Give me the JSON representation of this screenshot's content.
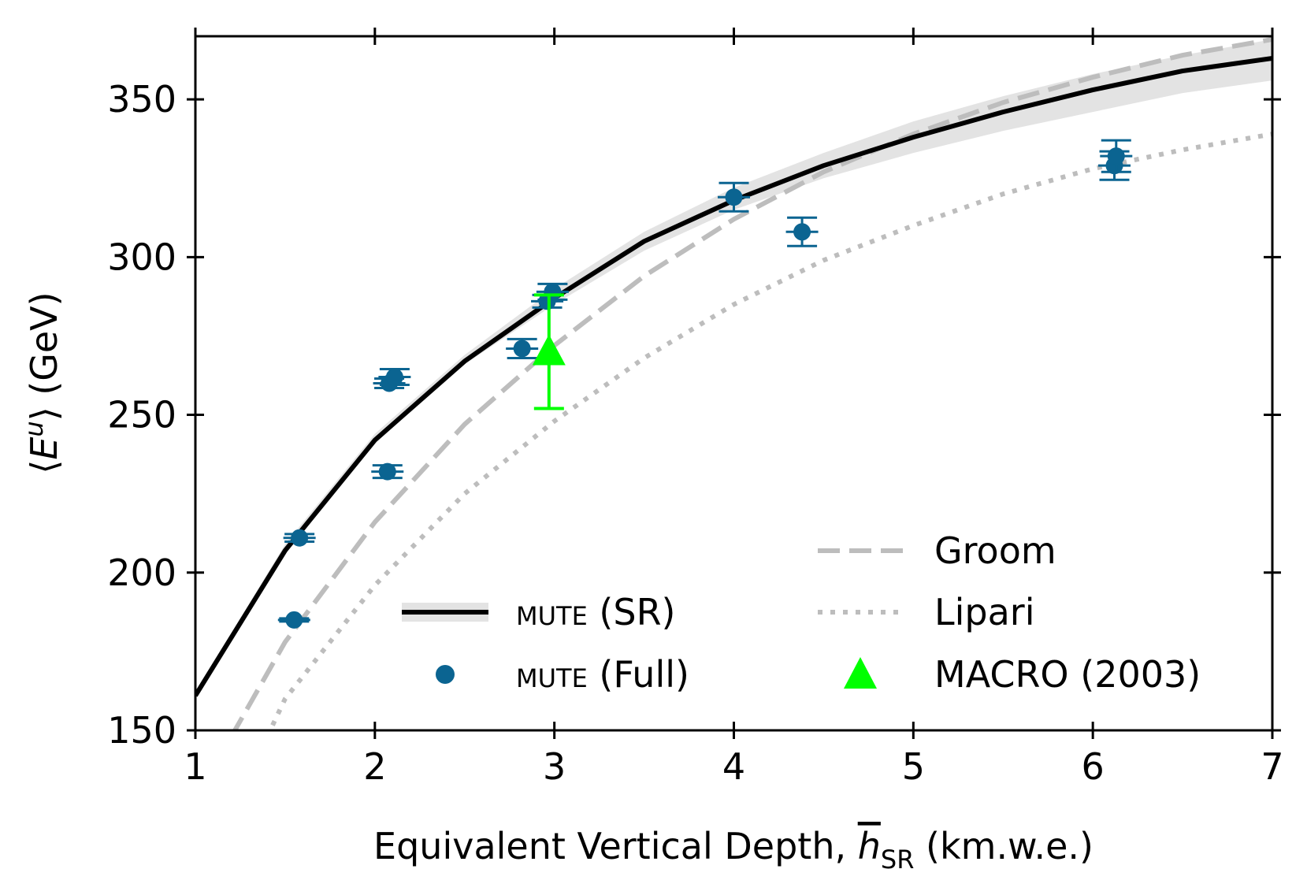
{
  "chart_data": {
    "type": "line",
    "xlabel": "Equivalent Vertical Depth, h̄SR (km.w.e.)",
    "ylabel": "⟨Eᵘ⟩ (GeV)",
    "xlim": [
      1,
      7
    ],
    "ylim": [
      150,
      370
    ],
    "xticks": [
      1,
      2,
      3,
      4,
      5,
      6,
      7
    ],
    "yticks": [
      150,
      200,
      250,
      300,
      350
    ],
    "grid": false,
    "legend_position": "lower-right",
    "colors": {
      "mute_sr": "#000000",
      "mute_sr_band": "#e3e3e3",
      "mute_full": "#0b6491",
      "groom": "#bdbdbd",
      "lipari": "#bdbdbd",
      "macro": "#00ff00"
    },
    "series": [
      {
        "name": "mute (SR)",
        "style": "solid",
        "x": [
          1.0,
          1.5,
          2.0,
          2.5,
          3.0,
          3.5,
          4.0,
          4.5,
          5.0,
          5.5,
          6.0,
          6.5,
          7.0
        ],
        "y": [
          161,
          207,
          242,
          267,
          287,
          305,
          318,
          329,
          338,
          346,
          353,
          359,
          363
        ],
        "band_lower": [
          160,
          206,
          241,
          266,
          285,
          302,
          315,
          325,
          333,
          340,
          346,
          352,
          356
        ],
        "band_upper": [
          162,
          209,
          244,
          269,
          290,
          308,
          322,
          333,
          343,
          351,
          358,
          364,
          369
        ]
      },
      {
        "name": "mute (Full)",
        "style": "points",
        "points": [
          {
            "x": 1.55,
            "y": 185,
            "xerr": 0.09,
            "yerr": 0.5
          },
          {
            "x": 1.58,
            "y": 211,
            "xerr": 0.09,
            "yerr": 1.2
          },
          {
            "x": 2.07,
            "y": 232,
            "xerr": 0.09,
            "yerr": 2
          },
          {
            "x": 2.08,
            "y": 260,
            "xerr": 0.09,
            "yerr": 1.5
          },
          {
            "x": 2.11,
            "y": 262,
            "xerr": 0.09,
            "yerr": 2.5
          },
          {
            "x": 2.82,
            "y": 271,
            "xerr": 0.09,
            "yerr": 3
          },
          {
            "x": 2.96,
            "y": 286,
            "xerr": 0.09,
            "yerr": 2
          },
          {
            "x": 2.99,
            "y": 289,
            "xerr": 0.09,
            "yerr": 2.5
          },
          {
            "x": 4.0,
            "y": 319,
            "xerr": 0.09,
            "yerr": 4.5
          },
          {
            "x": 4.38,
            "y": 308,
            "xerr": 0.09,
            "yerr": 4.5
          },
          {
            "x": 6.12,
            "y": 329,
            "xerr": 0.09,
            "yerr": 4.5
          },
          {
            "x": 6.13,
            "y": 332,
            "xerr": 0.09,
            "yerr": 5
          }
        ]
      },
      {
        "name": "Groom",
        "style": "dashed",
        "x": [
          1.2,
          1.5,
          2.0,
          2.5,
          3.0,
          3.5,
          4.0,
          4.5,
          5.0,
          5.5,
          6.0,
          6.5,
          7.0
        ],
        "y": [
          148,
          178,
          216,
          247,
          272,
          294,
          312,
          327,
          339,
          349,
          357,
          364,
          369
        ]
      },
      {
        "name": "Lipari",
        "style": "dotted",
        "x": [
          1.4,
          1.5,
          2.0,
          2.5,
          3.0,
          3.5,
          4.0,
          4.5,
          5.0,
          5.5,
          6.0,
          6.5,
          7.0
        ],
        "y": [
          148,
          160,
          196,
          225,
          248,
          268,
          285,
          299,
          310,
          320,
          328,
          334,
          339
        ]
      },
      {
        "name": "MACRO (2003)",
        "style": "triangle",
        "points": [
          {
            "x": 2.97,
            "y": 270,
            "yerr_low": 18,
            "yerr_high": 18
          }
        ]
      }
    ]
  },
  "legend": {
    "mute_sr": {
      "smallcaps": "mute",
      "suffix": " (SR)"
    },
    "mute_full": {
      "smallcaps": "mute",
      "suffix": " (Full)"
    },
    "groom": "Groom",
    "lipari": "Lipari",
    "macro": "MACRO (2003)"
  },
  "axis_titles": {
    "x_main": "Equivalent Vertical Depth, ",
    "x_symbol": "h",
    "x_subscript": "SR",
    "x_unit": " (km.w.e.)",
    "y_open": "⟨",
    "y_symbol": "E",
    "y_super": "u",
    "y_close": "⟩ (GeV)"
  }
}
